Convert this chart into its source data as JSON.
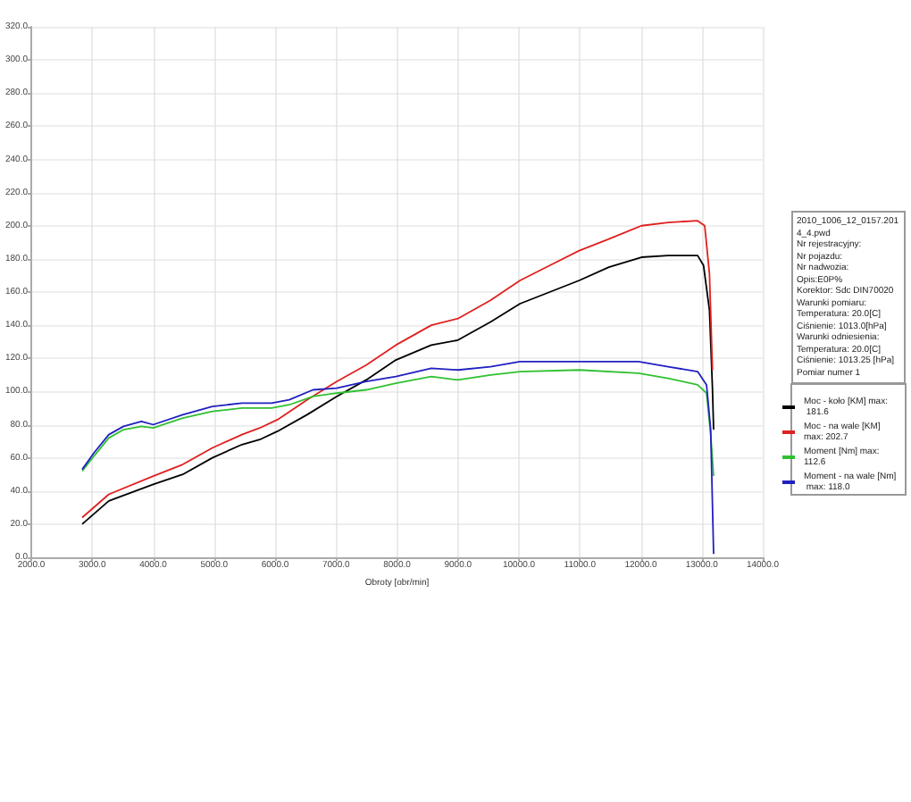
{
  "chart_data": {
    "type": "line",
    "xlabel": "Obroty [obr/min]",
    "xlim": [
      2000,
      14000
    ],
    "xticks": [
      {
        "value": 2000,
        "label": "2000.0"
      },
      {
        "value": 3000,
        "label": "3000.0"
      },
      {
        "value": 4000,
        "label": "4000.0"
      },
      {
        "value": 5000,
        "label": "5000.0"
      },
      {
        "value": 6000,
        "label": "6000.0"
      },
      {
        "value": 7000,
        "label": "7000.0"
      },
      {
        "value": 8000,
        "label": "8000.0"
      },
      {
        "value": 9000,
        "label": "9000.0"
      },
      {
        "value": 10000,
        "label": "10000.0"
      },
      {
        "value": 11000,
        "label": "11000.0"
      },
      {
        "value": 12000,
        "label": "12000.0"
      },
      {
        "value": 13000,
        "label": "13000.0"
      },
      {
        "value": 14000,
        "label": "14000.0"
      }
    ],
    "ylim": [
      0,
      320
    ],
    "yticks": [
      {
        "value": 0,
        "label": "0.0"
      },
      {
        "value": 20,
        "label": "20.0"
      },
      {
        "value": 40,
        "label": "40.0"
      },
      {
        "value": 60,
        "label": "60.0"
      },
      {
        "value": 80,
        "label": "80.0"
      },
      {
        "value": 100,
        "label": "100.0"
      },
      {
        "value": 120,
        "label": "120.0"
      },
      {
        "value": 140,
        "label": "140.0"
      },
      {
        "value": 160,
        "label": "160.0"
      },
      {
        "value": 180,
        "label": "180.0"
      },
      {
        "value": 200,
        "label": "200.0"
      },
      {
        "value": 220,
        "label": "220.0"
      },
      {
        "value": 240,
        "label": "240.0"
      },
      {
        "value": 260,
        "label": "260.0"
      },
      {
        "value": 280,
        "label": "280.0"
      },
      {
        "value": 300,
        "label": "300.0"
      },
      {
        "value": 320,
        "label": "320.0"
      }
    ],
    "grid": true,
    "legend": "right",
    "marker": "none",
    "line_style": "solid",
    "annotations": [
      "2010_1006_12_0157.2014_4.pwd",
      "Nr rejestracyjny:",
      "Nr pojazdu:",
      "Nr nadwozia:",
      "Opis:E0P%",
      "Korektor: Sdc DIN70020",
      "Warunki pomiaru:",
      "Temperatura: 20.0[C]",
      "Ciśnienie: 1013.0[hPa]",
      "Warunki odniesienia:",
      "Temperatura: 20.0[C]",
      "Ciśnienie: 1013.25 [hPa]",
      "Pomiar numer 1"
    ],
    "series": [
      {
        "name": "Moc - koło [KM] max: 181.6",
        "color": "#000000",
        "x": [
          2835,
          3272,
          4000,
          4485,
          4971,
          5456,
          5748,
          6039,
          6524,
          7010,
          7495,
          7981,
          8563,
          9000,
          9534,
          10019,
          10505,
          10990,
          11476,
          12010,
          12447,
          12932,
          13029,
          13126,
          13175,
          13194
        ],
        "values": [
          20,
          34,
          44,
          50,
          60,
          68,
          71,
          76,
          86,
          97,
          107,
          119,
          128,
          131,
          142,
          153,
          160,
          167,
          175,
          181,
          182,
          182,
          176,
          149,
          102,
          77
        ]
      },
      {
        "name": "Moc - na wale [KM] max: 202.7",
        "color": "#e02020",
        "x": [
          2835,
          3272,
          4000,
          4485,
          4971,
          5456,
          5748,
          6039,
          6524,
          7010,
          7495,
          7981,
          8563,
          9000,
          9534,
          10019,
          10505,
          10990,
          11476,
          12010,
          12447,
          12932,
          13048,
          13126,
          13175
        ],
        "values": [
          24,
          38,
          49,
          56,
          66,
          74,
          78,
          83,
          95,
          106,
          116,
          128,
          140,
          144,
          155,
          167,
          176,
          185,
          192,
          200,
          202,
          203,
          200,
          171,
          113
        ]
      },
      {
        "name": "Moment [Nm] max: 112.6",
        "color": "#30c030",
        "x": [
          2835,
          3029,
          3272,
          3515,
          3806,
          4000,
          4485,
          4971,
          5456,
          5942,
          6233,
          6621,
          7010,
          7495,
          7981,
          8563,
          9000,
          9534,
          10019,
          10990,
          11961,
          12447,
          12932,
          13078,
          13146,
          13194
        ],
        "values": [
          52,
          61,
          72,
          77,
          79,
          78,
          84,
          88,
          90,
          90,
          92,
          97,
          99,
          101,
          105,
          109,
          107,
          110,
          112,
          113,
          111,
          108,
          104,
          99,
          74,
          49
        ]
      },
      {
        "name": "Moment - na wale [Nm] max: 118.0",
        "color": "#2020c0",
        "x": [
          2835,
          3029,
          3272,
          3515,
          3806,
          4000,
          4485,
          4971,
          5456,
          5942,
          6233,
          6621,
          7010,
          7495,
          7981,
          8563,
          9000,
          9534,
          10019,
          10990,
          11961,
          12447,
          12932,
          13078,
          13146,
          13194
        ],
        "values": [
          53,
          63,
          74,
          79,
          82,
          80,
          86,
          91,
          93,
          93,
          95,
          101,
          102,
          106,
          109,
          114,
          113,
          115,
          118,
          118,
          118,
          115,
          112,
          104,
          77,
          2
        ]
      }
    ]
  }
}
